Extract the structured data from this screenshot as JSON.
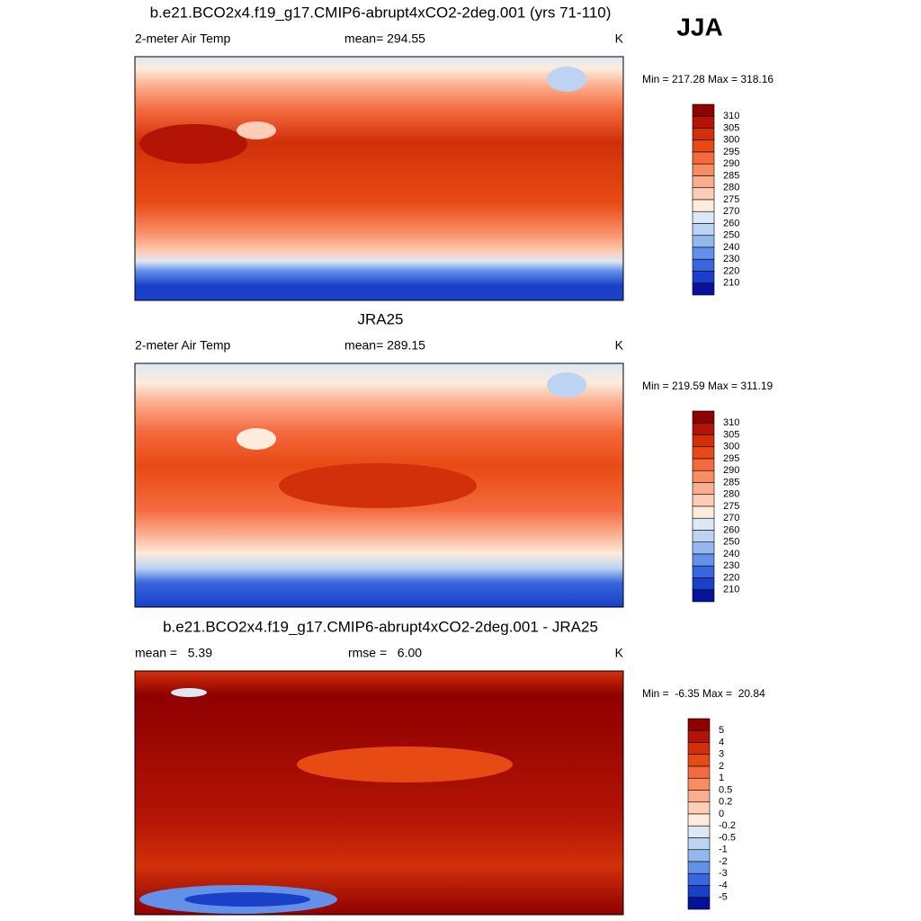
{
  "season": "JJA",
  "panels": [
    {
      "title": "b.e21.BCO2x4.f19_g17.CMIP6-abrupt4xCO2-2deg.001 (yrs 71-110)",
      "left": "2-meter Air Temp",
      "center": "mean= 294.55",
      "right": "K",
      "min_max": "Min = 217.28 Max = 318.16",
      "colorbar": {
        "colors": [
          "#8f0000",
          "#b31405",
          "#d1300a",
          "#e84a14",
          "#f46a3e",
          "#f88d64",
          "#fbae8e",
          "#fdcdb6",
          "#fdebdc",
          "#dce8f6",
          "#bcd3f2",
          "#93b8ee",
          "#6390e8",
          "#3866de",
          "#1a3fc8",
          "#04139a"
        ],
        "labels": [
          310,
          305,
          300,
          295,
          290,
          285,
          280,
          275,
          270,
          260,
          250,
          240,
          230,
          220,
          210
        ]
      }
    },
    {
      "title": "JRA25",
      "left": "2-meter Air Temp",
      "center": "mean= 289.15",
      "right": "K",
      "min_max": "Min = 219.59 Max = 311.19",
      "colorbar": {
        "colors": [
          "#8f0000",
          "#b31405",
          "#d1300a",
          "#e84a14",
          "#f46a3e",
          "#f88d64",
          "#fbae8e",
          "#fdcdb6",
          "#fdebdc",
          "#dce8f6",
          "#bcd3f2",
          "#93b8ee",
          "#6390e8",
          "#3866de",
          "#1a3fc8",
          "#04139a"
        ],
        "labels": [
          310,
          305,
          300,
          295,
          290,
          285,
          280,
          275,
          270,
          260,
          250,
          240,
          230,
          220,
          210
        ]
      }
    },
    {
      "title": "b.e21.BCO2x4.f19_g17.CMIP6-abrupt4xCO2-2deg.001 - JRA25",
      "left": "mean =   5.39",
      "center": "rmse =   6.00",
      "right": "K",
      "min_max": "Min =  -6.35 Max =  20.84",
      "colorbar": {
        "colors": [
          "#8f0000",
          "#b31405",
          "#d1300a",
          "#e84a14",
          "#f46a3e",
          "#f88d64",
          "#fbae8e",
          "#fdcdb6",
          "#fdebdc",
          "#dce8f6",
          "#bcd3f2",
          "#93b8ee",
          "#6390e8",
          "#3866de",
          "#1a3fc8",
          "#04139a"
        ],
        "labels": [
          5,
          4,
          3,
          2,
          1,
          0.5,
          0.2,
          0,
          -0.2,
          -0.5,
          -1,
          -2,
          -3,
          -4,
          -5
        ]
      }
    }
  ]
}
